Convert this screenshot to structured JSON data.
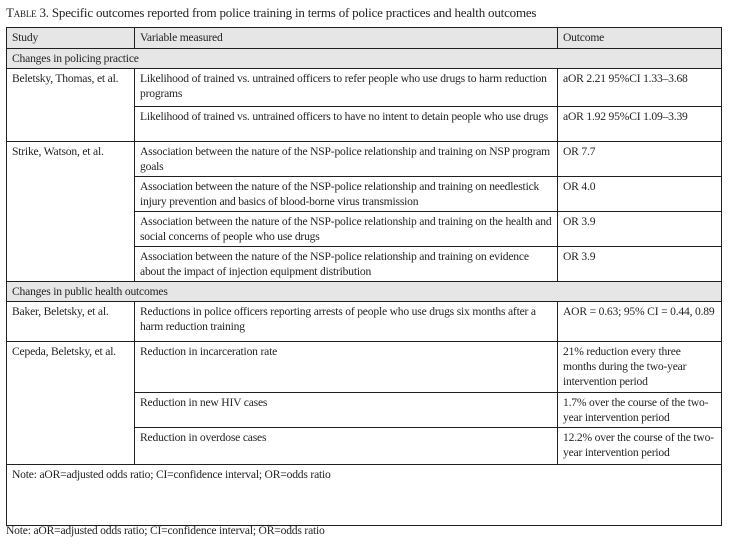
{
  "title": {
    "label": "Table 3.",
    "text": "Specific outcomes reported from police training in terms of police practices and health outcomes"
  },
  "headers": {
    "study": "Study",
    "variable": "Variable measured",
    "outcome": "Outcome"
  },
  "sections": [
    {
      "label": "Changes in policing practice"
    },
    {
      "label": "Changes in public health outcomes"
    }
  ],
  "rows": [
    {
      "study": "Beletsky, Thomas, et al.",
      "variable": "Likelihood of trained vs. untrained officers to refer people who use drugs to harm reduction programs",
      "outcome": "aOR 2.21 95%CI 1.33–3.68"
    },
    {
      "variable": "Likelihood of trained vs. untrained officers to have no intent to detain people who use drugs",
      "outcome": "aOR 1.92 95%CI 1.09–3.39"
    },
    {
      "study": "Strike, Watson, et al.",
      "variable": "Association between the nature of the NSP-police relationship and training on NSP program goals",
      "outcome": "OR 7.7"
    },
    {
      "variable": "Association between the nature of the NSP-police relationship and training on needlestick injury prevention and basics of blood-borne virus transmission",
      "outcome": "OR 4.0"
    },
    {
      "variable": "Association between the nature of the NSP-police relationship and training on the health and social concerns of people who use drugs",
      "outcome": "OR 3.9"
    },
    {
      "variable": "Association between the nature of the NSP-police relationship and training on evidence about the impact of injection equipment distribution",
      "outcome": "OR 3.9"
    },
    {
      "study": "Baker, Beletsky, et al.",
      "variable": "Reductions in police officers reporting arrests of people who use drugs six months after a harm reduction training",
      "outcome": "AOR = 0.63; 95% CI = 0.44, 0.89"
    },
    {
      "study": "Cepeda, Beletsky, et al.",
      "variable": "Reduction in incarceration rate",
      "outcome": "21% reduction every three months during the two-year intervention period"
    },
    {
      "variable": "Reduction in new HIV cases",
      "outcome": "1.7% over the course of the two-year intervention period"
    },
    {
      "variable": "Reduction in overdose cases",
      "outcome": "12.2% over the course of the two-year intervention period"
    }
  ],
  "table_note": "Note: aOR=adjusted odds ratio; CI=confidence interval; OR=odds ratio",
  "bottom_note": "Note: aOR=adjusted odds ratio; CI=confidence interval; OR=odds ratio"
}
